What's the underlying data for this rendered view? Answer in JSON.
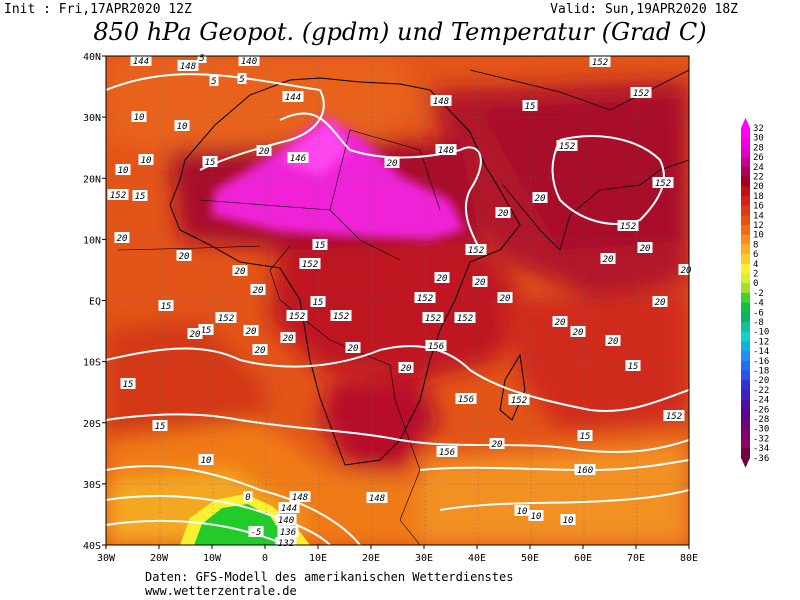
{
  "header": {
    "init": "Init : Fri,17APR2020 12Z",
    "valid": "Valid: Sun,19APR2020 18Z",
    "title": "850 hPa Geopot. (gpdm) und Temperatur (Grad C)"
  },
  "map": {
    "lat_labels": [
      "40N",
      "30N",
      "20N",
      "10N",
      "EQ",
      "10S",
      "20S",
      "30S",
      "40S"
    ],
    "lon_labels": [
      "30W",
      "20W",
      "10W",
      "0",
      "10E",
      "20E",
      "30E",
      "40E",
      "50E",
      "60E",
      "70E",
      "80E"
    ],
    "geopotential_labels": [
      "144",
      "148",
      "140",
      "144",
      "146",
      "148",
      "152",
      "152",
      "148",
      "152",
      "152",
      "152",
      "152",
      "152",
      "152",
      "152",
      "152",
      "152",
      "152",
      "152",
      "152",
      "156",
      "156",
      "156",
      "152",
      "160",
      "152",
      "148",
      "144",
      "140",
      "136",
      "132",
      "148"
    ],
    "temperature_labels": [
      "10",
      "10",
      "10",
      "10",
      "15",
      "15",
      "15",
      "15",
      "15",
      "15",
      "15",
      "15",
      "20",
      "20",
      "20",
      "20",
      "20",
      "20",
      "20",
      "20",
      "20",
      "20",
      "20",
      "20",
      "20",
      "20",
      "20",
      "20",
      "20",
      "20",
      "20",
      "20",
      "20",
      "20",
      "20",
      "20",
      "20",
      "5",
      "5",
      "5",
      "0",
      "-5",
      "10",
      "10",
      "10",
      "10",
      "15",
      "15",
      "15"
    ],
    "colors": {
      "hot_magenta": "#f020d8",
      "deep_red": "#b0102a",
      "red": "#d42820",
      "orange": "#ec5a12",
      "light_orange": "#f4981e",
      "green": "#22cc28",
      "white_contour": "#ffffff",
      "black_contour": "#000000"
    }
  },
  "legend": {
    "values": [
      "32",
      "30",
      "28",
      "26",
      "24",
      "22",
      "20",
      "18",
      "16",
      "14",
      "12",
      "10",
      "8",
      "6",
      "4",
      "2",
      "0",
      "-2",
      "-4",
      "-6",
      "-8",
      "-10",
      "-12",
      "-14",
      "-16",
      "-18",
      "-20",
      "-22",
      "-24",
      "-26",
      "-28",
      "-30",
      "-32",
      "-34",
      "-36"
    ],
    "colors": [
      "#ff00ff",
      "#f000e0",
      "#e000c8",
      "#c80090",
      "#b00050",
      "#a00020",
      "#c01010",
      "#d42018",
      "#e03818",
      "#e85010",
      "#f06a10",
      "#f88c1c",
      "#f8b020",
      "#f8d028",
      "#f8f030",
      "#d8f030",
      "#a0e030",
      "#40d030",
      "#10c040",
      "#10b060",
      "#10c0a0",
      "#10d0d0",
      "#10b0e0",
      "#2090f0",
      "#2070f0",
      "#3050e8",
      "#3030d8",
      "#4020c0",
      "#5010a8",
      "#600090",
      "#700080",
      "#800070",
      "#900060",
      "#700040"
    ]
  },
  "footer": {
    "line1": "Daten: GFS-Modell des amerikanischen Wetterdienstes",
    "line2": "www.wetterzentrale.de"
  }
}
